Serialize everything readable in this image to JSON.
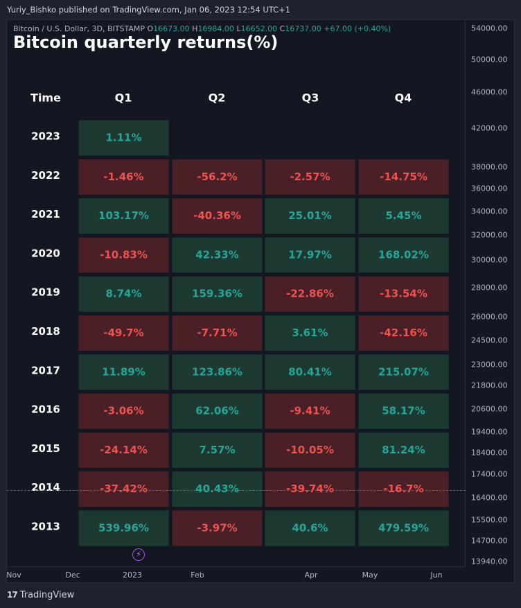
{
  "header": {
    "published": "Yuriy_Bishko published on TradingView.com, Jan 06, 2023 12:54 UTC+1"
  },
  "legend": {
    "symbol": "Bitcoin / U.S. Dollar, 3D, BITSTAMP",
    "o_label": "O",
    "o_value": "16673.00",
    "h_label": "H",
    "h_value": "16984.00",
    "l_label": "L",
    "l_value": "16652.00",
    "c_label": "C",
    "c_value": "16737.00",
    "change": "+67.00 (+0.40%)"
  },
  "colors": {
    "positive_text": "#26a69a",
    "negative_text": "#ef5350",
    "positive_cell": "#1d3a32",
    "negative_cell": "#4a1f26"
  },
  "price_axis": [
    "54000.00",
    "50000.00",
    "46000.00",
    "42000.00",
    "38000.00",
    "36000.00",
    "34000.00",
    "32000.00",
    "30000.00",
    "28000.00",
    "26000.00",
    "24500.00",
    "23000.00",
    "21800.00",
    "20600.00",
    "19400.00",
    "18400.00",
    "17400.00",
    "16400.00",
    "15500.00",
    "14700.00",
    "13940.00"
  ],
  "time_axis": [
    "Nov",
    "Dec",
    "2023",
    "Feb",
    "Apr",
    "May",
    "Jun"
  ],
  "footer": {
    "brand": "TradingView"
  },
  "chart_data": {
    "type": "table",
    "title": "Bitcoin quarterly returns(%)",
    "columns": [
      "Time",
      "Q1",
      "Q2",
      "Q3",
      "Q4"
    ],
    "rows": [
      {
        "year": "2023",
        "values": [
          "1.11%",
          null,
          null,
          null
        ]
      },
      {
        "year": "2022",
        "values": [
          "-1.46%",
          "-56.2%",
          "-2.57%",
          "-14.75%"
        ]
      },
      {
        "year": "2021",
        "values": [
          "103.17%",
          "-40.36%",
          "25.01%",
          "5.45%"
        ]
      },
      {
        "year": "2020",
        "values": [
          "-10.83%",
          "42.33%",
          "17.97%",
          "168.02%"
        ]
      },
      {
        "year": "2019",
        "values": [
          "8.74%",
          "159.36%",
          "-22.86%",
          "-13.54%"
        ]
      },
      {
        "year": "2018",
        "values": [
          "-49.7%",
          "-7.71%",
          "3.61%",
          "-42.16%"
        ]
      },
      {
        "year": "2017",
        "values": [
          "11.89%",
          "123.86%",
          "80.41%",
          "215.07%"
        ]
      },
      {
        "year": "2016",
        "values": [
          "-3.06%",
          "62.06%",
          "-9.41%",
          "58.17%"
        ]
      },
      {
        "year": "2015",
        "values": [
          "-24.14%",
          "7.57%",
          "-10.05%",
          "81.24%"
        ]
      },
      {
        "year": "2014",
        "values": [
          "-37.42%",
          "40.43%",
          "-39.74%",
          "-16.7%"
        ]
      },
      {
        "year": "2013",
        "values": [
          "539.96%",
          "-3.97%",
          "40.6%",
          "479.59%"
        ]
      }
    ]
  }
}
